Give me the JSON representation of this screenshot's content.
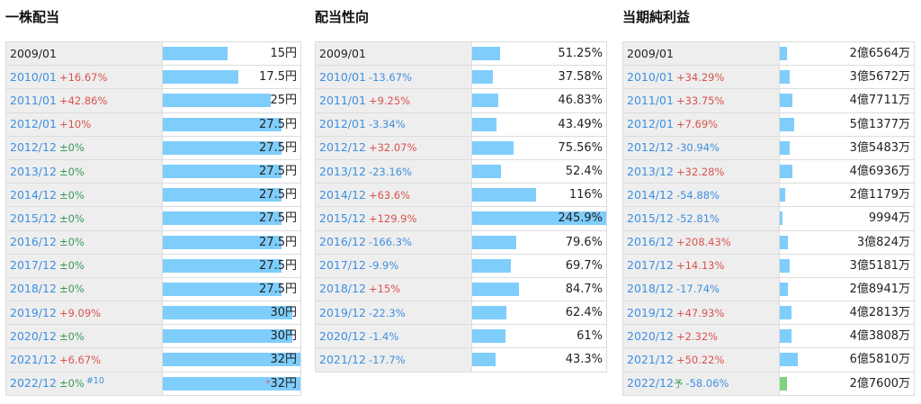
{
  "panels": [
    {
      "title": "一株配当",
      "rows": [
        {
          "period": "2009/01",
          "change": "",
          "dir": "",
          "value": "15円",
          "v": 15
        },
        {
          "period": "2010/01",
          "change": "+16.67%",
          "dir": "pos",
          "value": "17.5円",
          "v": 17.5
        },
        {
          "period": "2011/01",
          "change": "+42.86%",
          "dir": "pos",
          "value": "25円",
          "v": 25
        },
        {
          "period": "2012/01",
          "change": "+10%",
          "dir": "pos",
          "value": "27.5円",
          "v": 27.5
        },
        {
          "period": "2012/12",
          "change": "±0%",
          "dir": "zero",
          "value": "27.5円",
          "v": 27.5
        },
        {
          "period": "2013/12",
          "change": "±0%",
          "dir": "zero",
          "value": "27.5円",
          "v": 27.5
        },
        {
          "period": "2014/12",
          "change": "±0%",
          "dir": "zero",
          "value": "27.5円",
          "v": 27.5
        },
        {
          "period": "2015/12",
          "change": "±0%",
          "dir": "zero",
          "value": "27.5円",
          "v": 27.5
        },
        {
          "period": "2016/12",
          "change": "±0%",
          "dir": "zero",
          "value": "27.5円",
          "v": 27.5
        },
        {
          "period": "2017/12",
          "change": "±0%",
          "dir": "zero",
          "value": "27.5円",
          "v": 27.5
        },
        {
          "period": "2018/12",
          "change": "±0%",
          "dir": "zero",
          "value": "27.5円",
          "v": 27.5
        },
        {
          "period": "2019/12",
          "change": "+9.09%",
          "dir": "pos",
          "value": "30円",
          "v": 30
        },
        {
          "period": "2020/12",
          "change": "±0%",
          "dir": "zero",
          "value": "30円",
          "v": 30
        },
        {
          "period": "2021/12",
          "change": "+6.67%",
          "dir": "pos",
          "value": "32円",
          "v": 32
        },
        {
          "period": "2022/12",
          "change": "±0%",
          "dir": "zero",
          "value": "32円",
          "v": 32,
          "note": "#10",
          "star": "*"
        }
      ]
    },
    {
      "title": "配当性向",
      "rows": [
        {
          "period": "2009/01",
          "change": "",
          "dir": "",
          "value": "51.25%",
          "v": 51.25
        },
        {
          "period": "2010/01",
          "change": "-13.67%",
          "dir": "neg",
          "value": "37.58%",
          "v": 37.58
        },
        {
          "period": "2011/01",
          "change": "+9.25%",
          "dir": "pos",
          "value": "46.83%",
          "v": 46.83
        },
        {
          "period": "2012/01",
          "change": "-3.34%",
          "dir": "neg",
          "value": "43.49%",
          "v": 43.49
        },
        {
          "period": "2012/12",
          "change": "+32.07%",
          "dir": "pos",
          "value": "75.56%",
          "v": 75.56
        },
        {
          "period": "2013/12",
          "change": "-23.16%",
          "dir": "neg",
          "value": "52.4%",
          "v": 52.4
        },
        {
          "period": "2014/12",
          "change": "+63.6%",
          "dir": "pos",
          "value": "116%",
          "v": 116
        },
        {
          "period": "2015/12",
          "change": "+129.9%",
          "dir": "pos",
          "value": "245.9%",
          "v": 245.9
        },
        {
          "period": "2016/12",
          "change": "-166.3%",
          "dir": "neg",
          "value": "79.6%",
          "v": 79.6
        },
        {
          "period": "2017/12",
          "change": "-9.9%",
          "dir": "neg",
          "value": "69.7%",
          "v": 69.7
        },
        {
          "period": "2018/12",
          "change": "+15%",
          "dir": "pos",
          "value": "84.7%",
          "v": 84.7
        },
        {
          "period": "2019/12",
          "change": "-22.3%",
          "dir": "neg",
          "value": "62.4%",
          "v": 62.4
        },
        {
          "period": "2020/12",
          "change": "-1.4%",
          "dir": "neg",
          "value": "61%",
          "v": 61
        },
        {
          "period": "2021/12",
          "change": "-17.7%",
          "dir": "neg",
          "value": "43.3%",
          "v": 43.3
        }
      ]
    },
    {
      "title": "当期純利益",
      "rows": [
        {
          "period": "2009/01",
          "change": "",
          "dir": "",
          "value": "2億6564万",
          "v": 26564
        },
        {
          "period": "2010/01",
          "change": "+34.29%",
          "dir": "pos",
          "value": "3億5672万",
          "v": 35672
        },
        {
          "period": "2011/01",
          "change": "+33.75%",
          "dir": "pos",
          "value": "4億7711万",
          "v": 47711
        },
        {
          "period": "2012/01",
          "change": "+7.69%",
          "dir": "pos",
          "value": "5億1377万",
          "v": 51377
        },
        {
          "period": "2012/12",
          "change": "-30.94%",
          "dir": "neg",
          "value": "3億5483万",
          "v": 35483
        },
        {
          "period": "2013/12",
          "change": "+32.28%",
          "dir": "pos",
          "value": "4億6936万",
          "v": 46936
        },
        {
          "period": "2014/12",
          "change": "-54.88%",
          "dir": "neg",
          "value": "2億1179万",
          "v": 21179
        },
        {
          "period": "2015/12",
          "change": "-52.81%",
          "dir": "neg",
          "value": "9994万",
          "v": 9994
        },
        {
          "period": "2016/12",
          "change": "+208.43%",
          "dir": "pos",
          "value": "3億824万",
          "v": 30824
        },
        {
          "period": "2017/12",
          "change": "+14.13%",
          "dir": "pos",
          "value": "3億5181万",
          "v": 35181
        },
        {
          "period": "2018/12",
          "change": "-17.74%",
          "dir": "neg",
          "value": "2億8941万",
          "v": 28941
        },
        {
          "period": "2019/12",
          "change": "+47.93%",
          "dir": "pos",
          "value": "4億2813万",
          "v": 42813
        },
        {
          "period": "2020/12",
          "change": "+2.32%",
          "dir": "pos",
          "value": "4億3808万",
          "v": 43808
        },
        {
          "period": "2021/12",
          "change": "+50.22%",
          "dir": "pos",
          "value": "6億5810万",
          "v": 65810
        },
        {
          "period": "2022/12",
          "change": "-58.06%",
          "dir": "neg",
          "value": "2億7600万",
          "v": 27600,
          "forecast": "予"
        }
      ]
    }
  ],
  "colors": {
    "bar": "#7fcdfb",
    "forecast_bar": "#7ed27e",
    "positive": "#d9534f",
    "negative": "#3d8fe0",
    "zero": "#3a9a5c"
  }
}
